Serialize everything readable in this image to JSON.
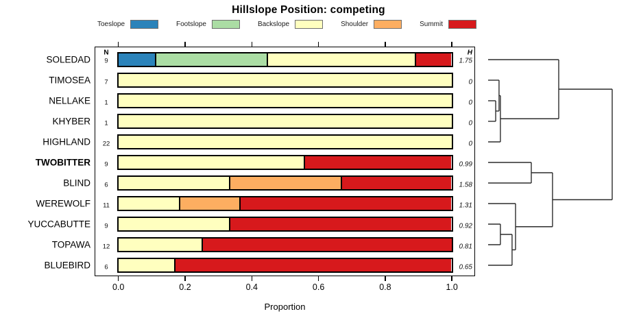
{
  "title": "Hillslope Position: competing",
  "xlabel": "Proportion",
  "columns": {
    "n_header": "N",
    "h_header": "H"
  },
  "x_ticks": [
    "0.0",
    "0.2",
    "0.4",
    "0.6",
    "0.8",
    "1.0"
  ],
  "legend": [
    {
      "label": "Toeslope",
      "color": "#2B83BA"
    },
    {
      "label": "Footslope",
      "color": "#ABDDA4"
    },
    {
      "label": "Backslope",
      "color": "#FFFFBF"
    },
    {
      "label": "Shoulder",
      "color": "#FDAE61"
    },
    {
      "label": "Summit",
      "color": "#D7191C"
    }
  ],
  "chart_data": {
    "type": "bar",
    "stacked": true,
    "orientation": "horizontal",
    "title": "Hillslope Position: competing",
    "xlabel": "Proportion",
    "xlim": [
      0,
      1
    ],
    "x_tick_values": [
      0.0,
      0.2,
      0.4,
      0.6,
      0.8,
      1.0
    ],
    "grid": false,
    "legend_position": "top",
    "categories": [
      "Toeslope",
      "Footslope",
      "Backslope",
      "Shoulder",
      "Summit"
    ],
    "colors": [
      "#2B83BA",
      "#ABDDA4",
      "#FFFFBF",
      "#FDAE61",
      "#D7191C"
    ],
    "rows": [
      {
        "label": "SOLEDAD",
        "bold": false,
        "n": 9,
        "h": "1.75",
        "proportions": [
          0.111,
          0.334,
          0.444,
          0,
          0.111
        ]
      },
      {
        "label": "TIMOSEA",
        "bold": false,
        "n": 7,
        "h": "0",
        "proportions": [
          0,
          0,
          1,
          0,
          0
        ]
      },
      {
        "label": "NELLAKE",
        "bold": false,
        "n": 1,
        "h": "0",
        "proportions": [
          0,
          0,
          1,
          0,
          0
        ]
      },
      {
        "label": "KHYBER",
        "bold": false,
        "n": 1,
        "h": "0",
        "proportions": [
          0,
          0,
          1,
          0,
          0
        ]
      },
      {
        "label": "HIGHLAND",
        "bold": false,
        "n": 22,
        "h": "0",
        "proportions": [
          0,
          0,
          1,
          0,
          0
        ]
      },
      {
        "label": "TWOBITTER",
        "bold": true,
        "n": 9,
        "h": "0.99",
        "proportions": [
          0,
          0,
          0.556,
          0,
          0.444
        ]
      },
      {
        "label": "BLIND",
        "bold": false,
        "n": 6,
        "h": "1.58",
        "proportions": [
          0,
          0,
          0.333,
          0.334,
          0.333
        ]
      },
      {
        "label": "WEREWOLF",
        "bold": false,
        "n": 11,
        "h": "1.31",
        "proportions": [
          0,
          0,
          0.182,
          0.182,
          0.636
        ]
      },
      {
        "label": "YUCCABUTTE",
        "bold": false,
        "n": 9,
        "h": "0.92",
        "proportions": [
          0,
          0,
          0.333,
          0,
          0.667
        ]
      },
      {
        "label": "TOPAWA",
        "bold": false,
        "n": 12,
        "h": "0.81",
        "proportions": [
          0,
          0,
          0.25,
          0,
          0.75
        ]
      },
      {
        "label": "BLUEBIRD",
        "bold": false,
        "n": 6,
        "h": "0.65",
        "proportions": [
          0,
          0,
          0.167,
          0,
          0.833
        ]
      }
    ],
    "dendrogram": {
      "height": 1.0,
      "children": [
        {
          "height": 0.569,
          "children": [
            {
              "leaf": "SOLEDAD",
              "row": 0
            },
            {
              "height": 0.099,
              "children": [
                {
                  "height": 0.088,
                  "children": [
                    {
                      "leaf": "TIMOSEA",
                      "row": 1
                    },
                    {
                      "height": 0.061,
                      "children": [
                        {
                          "leaf": "NELLAKE",
                          "row": 2
                        },
                        {
                          "leaf": "KHYBER",
                          "row": 3
                        }
                      ]
                    }
                  ]
                },
                {
                  "leaf": "HIGHLAND",
                  "row": 4
                }
              ]
            }
          ]
        },
        {
          "height": 0.519,
          "children": [
            {
              "height": 0.348,
              "children": [
                {
                  "leaf": "TWOBITTER",
                  "row": 5
                },
                {
                  "leaf": "BLIND",
                  "row": 6
                }
              ]
            },
            {
              "height": 0.221,
              "children": [
                {
                  "leaf": "WEREWOLF",
                  "row": 7
                },
                {
                  "height": 0.193,
                  "children": [
                    {
                      "height": 0.099,
                      "children": [
                        {
                          "leaf": "YUCCABUTTE",
                          "row": 8
                        },
                        {
                          "leaf": "TOPAWA",
                          "row": 9
                        }
                      ]
                    },
                    {
                      "leaf": "BLUEBIRD",
                      "row": 10
                    }
                  ]
                }
              ]
            }
          ]
        }
      ]
    }
  }
}
